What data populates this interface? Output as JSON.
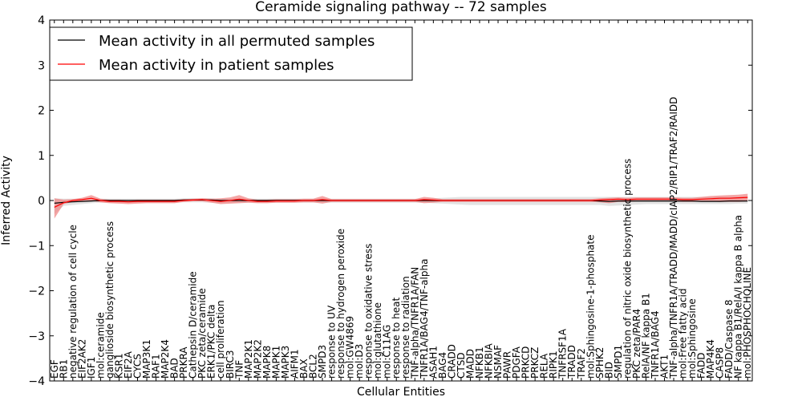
{
  "chart_data": {
    "type": "line",
    "title": "Ceramide signaling pathway -- 72 samples",
    "xlabel": "Cellular Entities",
    "ylabel": "Inferred Activity",
    "ylim": [
      -4,
      4
    ],
    "yticks": [
      -4,
      -3,
      -2,
      -1,
      0,
      1,
      2,
      3,
      4
    ],
    "grid": false,
    "legend_position": "top-left",
    "categories": [
      "EGF",
      "RB1",
      "negative regulation of cell cycle",
      "EIF2AK2",
      "IGF1",
      "mol:ceramide",
      "ganglioside biosynthetic process",
      "KSR1",
      "EIF2A",
      "CYCS",
      "MAP3K1",
      "RAF1",
      "MAP2K4",
      "BAD",
      "PRKRA",
      "Cathepsin D/ceramide",
      "PKC zeta/ceramide",
      "ERK1/PKC delta",
      "cell proliferation",
      "BIRC3",
      "TNF",
      "MAP2K1",
      "MAP2K2",
      "MAPK8",
      "MAPK1",
      "MAPK3",
      "AIFM1",
      "BAX",
      "BCL2",
      "SMPD3",
      "response to UV",
      "response to hydrogen peroxide",
      "mol:GW4869",
      "mol:D3",
      "response to oxidative stress",
      "mol:glutathione",
      "mol:C11AG",
      "response to heat",
      "response to radiation",
      "TNF-alpha/TNFR1A/FAN",
      "TNFR1A/BAG4/TNF-alpha",
      "ASAH1",
      "BAG4",
      "CRADD",
      "CTSD",
      "MADD",
      "NFKB1",
      "NFKBIA",
      "NSMAF",
      "PAWR",
      "PDGFA",
      "PRKCD",
      "PRKCZ",
      "RELA",
      "RIPK1",
      "TNFRSF1A",
      "TRADD",
      "TRAF2",
      "mol:Sphingosine-1-phosphate",
      "SPHK2",
      "BID",
      "SMPD1",
      "regulation of nitric oxide biosynthetic process",
      "PKC zeta/PAR4",
      "RelA/NF kappa B1",
      "TNFR1A/BAG4",
      "AKT1",
      "TNF-alpha/TNFR1A/TRADD/MADD/cIAP2/RIP1/TRAF2/RAIDD",
      "mol:Free fatty acid",
      "mol:Sphingosine",
      "FADD",
      "MAP4K4",
      "CASP8",
      "FADD/Caspase 8",
      "NF kappa B1/RelA/I kappa B alpha",
      "mol:PHOSPHOCHOLINE"
    ],
    "series": [
      {
        "name": "Mean activity in all permuted samples",
        "color": "#000000",
        "values": [
          -0.06,
          -0.04,
          -0.03,
          -0.02,
          -0.01,
          0.0,
          0.0,
          0.0,
          0.0,
          0.0,
          0.0,
          0.0,
          0.0,
          0.0,
          0.01,
          0.01,
          0.01,
          0.01,
          0.0,
          0.0,
          0.0,
          0.0,
          0.0,
          0.0,
          0.0,
          0.0,
          0.0,
          0.0,
          0.0,
          0.0,
          0.0,
          0.0,
          0.0,
          0.0,
          0.0,
          0.0,
          0.0,
          0.0,
          0.0,
          0.0,
          0.0,
          0.0,
          0.0,
          0.0,
          0.0,
          0.0,
          0.0,
          0.0,
          0.0,
          0.0,
          0.0,
          0.0,
          0.0,
          0.0,
          0.0,
          0.0,
          0.0,
          0.0,
          0.0,
          -0.01,
          -0.02,
          -0.01,
          -0.01,
          -0.01,
          -0.01,
          -0.01,
          -0.01,
          -0.01,
          -0.01,
          -0.01,
          -0.02,
          -0.02,
          -0.02,
          -0.01,
          -0.01,
          -0.01
        ],
        "band_low": [
          -0.3,
          -0.12,
          -0.1,
          -0.08,
          -0.06,
          -0.05,
          -0.05,
          -0.05,
          -0.05,
          -0.05,
          -0.05,
          -0.05,
          -0.05,
          -0.05,
          -0.04,
          -0.04,
          -0.04,
          -0.05,
          -0.06,
          -0.06,
          -0.05,
          -0.05,
          -0.05,
          -0.05,
          -0.05,
          -0.05,
          -0.05,
          -0.05,
          -0.05,
          -0.05,
          -0.05,
          -0.05,
          -0.05,
          -0.05,
          -0.05,
          -0.05,
          -0.05,
          -0.05,
          -0.05,
          -0.05,
          -0.05,
          -0.06,
          -0.07,
          -0.08,
          -0.09,
          -0.1,
          -0.1,
          -0.1,
          -0.1,
          -0.1,
          -0.1,
          -0.1,
          -0.1,
          -0.1,
          -0.1,
          -0.1,
          -0.1,
          -0.1,
          -0.1,
          -0.1,
          -0.12,
          -0.11,
          -0.1,
          -0.09,
          -0.08,
          -0.08,
          -0.08,
          -0.08,
          -0.08,
          -0.08,
          -0.08,
          -0.08,
          -0.08,
          -0.08,
          -0.07,
          -0.07
        ],
        "band_high": [
          0.05,
          0.04,
          0.04,
          0.04,
          0.04,
          0.04,
          0.04,
          0.04,
          0.04,
          0.04,
          0.04,
          0.04,
          0.04,
          0.04,
          0.05,
          0.05,
          0.05,
          0.05,
          0.04,
          0.04,
          0.04,
          0.04,
          0.04,
          0.04,
          0.04,
          0.04,
          0.04,
          0.04,
          0.04,
          0.04,
          0.04,
          0.04,
          0.04,
          0.04,
          0.04,
          0.04,
          0.04,
          0.04,
          0.04,
          0.04,
          0.04,
          0.05,
          0.06,
          0.07,
          0.08,
          0.08,
          0.08,
          0.08,
          0.08,
          0.08,
          0.08,
          0.08,
          0.08,
          0.08,
          0.08,
          0.08,
          0.08,
          0.08,
          0.08,
          0.08,
          0.08,
          0.08,
          0.08,
          0.08,
          0.08,
          0.08,
          0.08,
          0.08,
          0.08,
          0.08,
          0.08,
          0.08,
          0.08,
          0.08,
          0.08,
          0.08
        ]
      },
      {
        "name": "Mean activity in patient samples",
        "color": "#ff0000",
        "values": [
          -0.15,
          -0.05,
          0.0,
          0.02,
          0.05,
          0.0,
          -0.02,
          -0.02,
          -0.03,
          -0.02,
          -0.02,
          -0.02,
          -0.02,
          -0.02,
          0.0,
          0.01,
          0.02,
          0.0,
          -0.02,
          0.0,
          0.03,
          0.0,
          -0.02,
          -0.02,
          -0.01,
          -0.01,
          -0.01,
          0.0,
          0.0,
          0.02,
          0.0,
          0.0,
          0.0,
          0.0,
          0.0,
          0.0,
          0.0,
          0.0,
          0.0,
          0.0,
          0.02,
          0.01,
          0.0,
          0.0,
          0.0,
          0.0,
          0.0,
          0.0,
          0.0,
          0.0,
          0.0,
          0.0,
          0.0,
          0.0,
          0.0,
          0.0,
          0.0,
          0.0,
          0.0,
          0.01,
          0.02,
          0.03,
          0.02,
          0.03,
          0.03,
          0.03,
          0.03,
          0.03,
          0.02,
          0.02,
          0.03,
          0.04,
          0.05,
          0.05,
          0.06,
          0.07
        ],
        "band_low": [
          -0.4,
          -0.08,
          -0.03,
          -0.02,
          -0.01,
          -0.04,
          -0.06,
          -0.07,
          -0.08,
          -0.07,
          -0.06,
          -0.06,
          -0.06,
          -0.06,
          -0.03,
          -0.02,
          -0.02,
          -0.05,
          -0.08,
          -0.07,
          -0.06,
          -0.05,
          -0.06,
          -0.06,
          -0.05,
          -0.05,
          -0.05,
          -0.04,
          -0.04,
          -0.07,
          -0.03,
          -0.03,
          -0.03,
          -0.03,
          -0.03,
          -0.03,
          -0.03,
          -0.03,
          -0.03,
          -0.03,
          -0.06,
          -0.05,
          -0.03,
          -0.03,
          -0.03,
          -0.03,
          -0.03,
          -0.03,
          -0.03,
          -0.03,
          -0.03,
          -0.03,
          -0.03,
          -0.03,
          -0.03,
          -0.03,
          -0.03,
          -0.03,
          -0.03,
          -0.04,
          -0.06,
          -0.03,
          -0.03,
          -0.02,
          -0.02,
          -0.02,
          -0.02,
          -0.02,
          -0.03,
          -0.03,
          -0.02,
          -0.02,
          -0.03,
          -0.03,
          -0.03,
          -0.02
        ],
        "band_high": [
          0.05,
          0.02,
          0.03,
          0.06,
          0.12,
          0.04,
          0.02,
          0.02,
          0.01,
          0.02,
          0.02,
          0.02,
          0.02,
          0.02,
          0.03,
          0.04,
          0.05,
          0.04,
          0.05,
          0.07,
          0.12,
          0.05,
          0.02,
          0.02,
          0.03,
          0.03,
          0.03,
          0.04,
          0.04,
          0.1,
          0.03,
          0.03,
          0.03,
          0.03,
          0.03,
          0.03,
          0.03,
          0.03,
          0.03,
          0.03,
          0.08,
          0.06,
          0.03,
          0.03,
          0.03,
          0.03,
          0.03,
          0.03,
          0.03,
          0.03,
          0.03,
          0.03,
          0.03,
          0.03,
          0.03,
          0.03,
          0.03,
          0.03,
          0.03,
          0.05,
          0.06,
          0.07,
          0.06,
          0.07,
          0.07,
          0.07,
          0.07,
          0.07,
          0.06,
          0.06,
          0.08,
          0.1,
          0.11,
          0.12,
          0.13,
          0.15
        ]
      }
    ]
  },
  "colors": {
    "permuted_band": "#d9d9d9",
    "patient_band": "#f08080"
  }
}
